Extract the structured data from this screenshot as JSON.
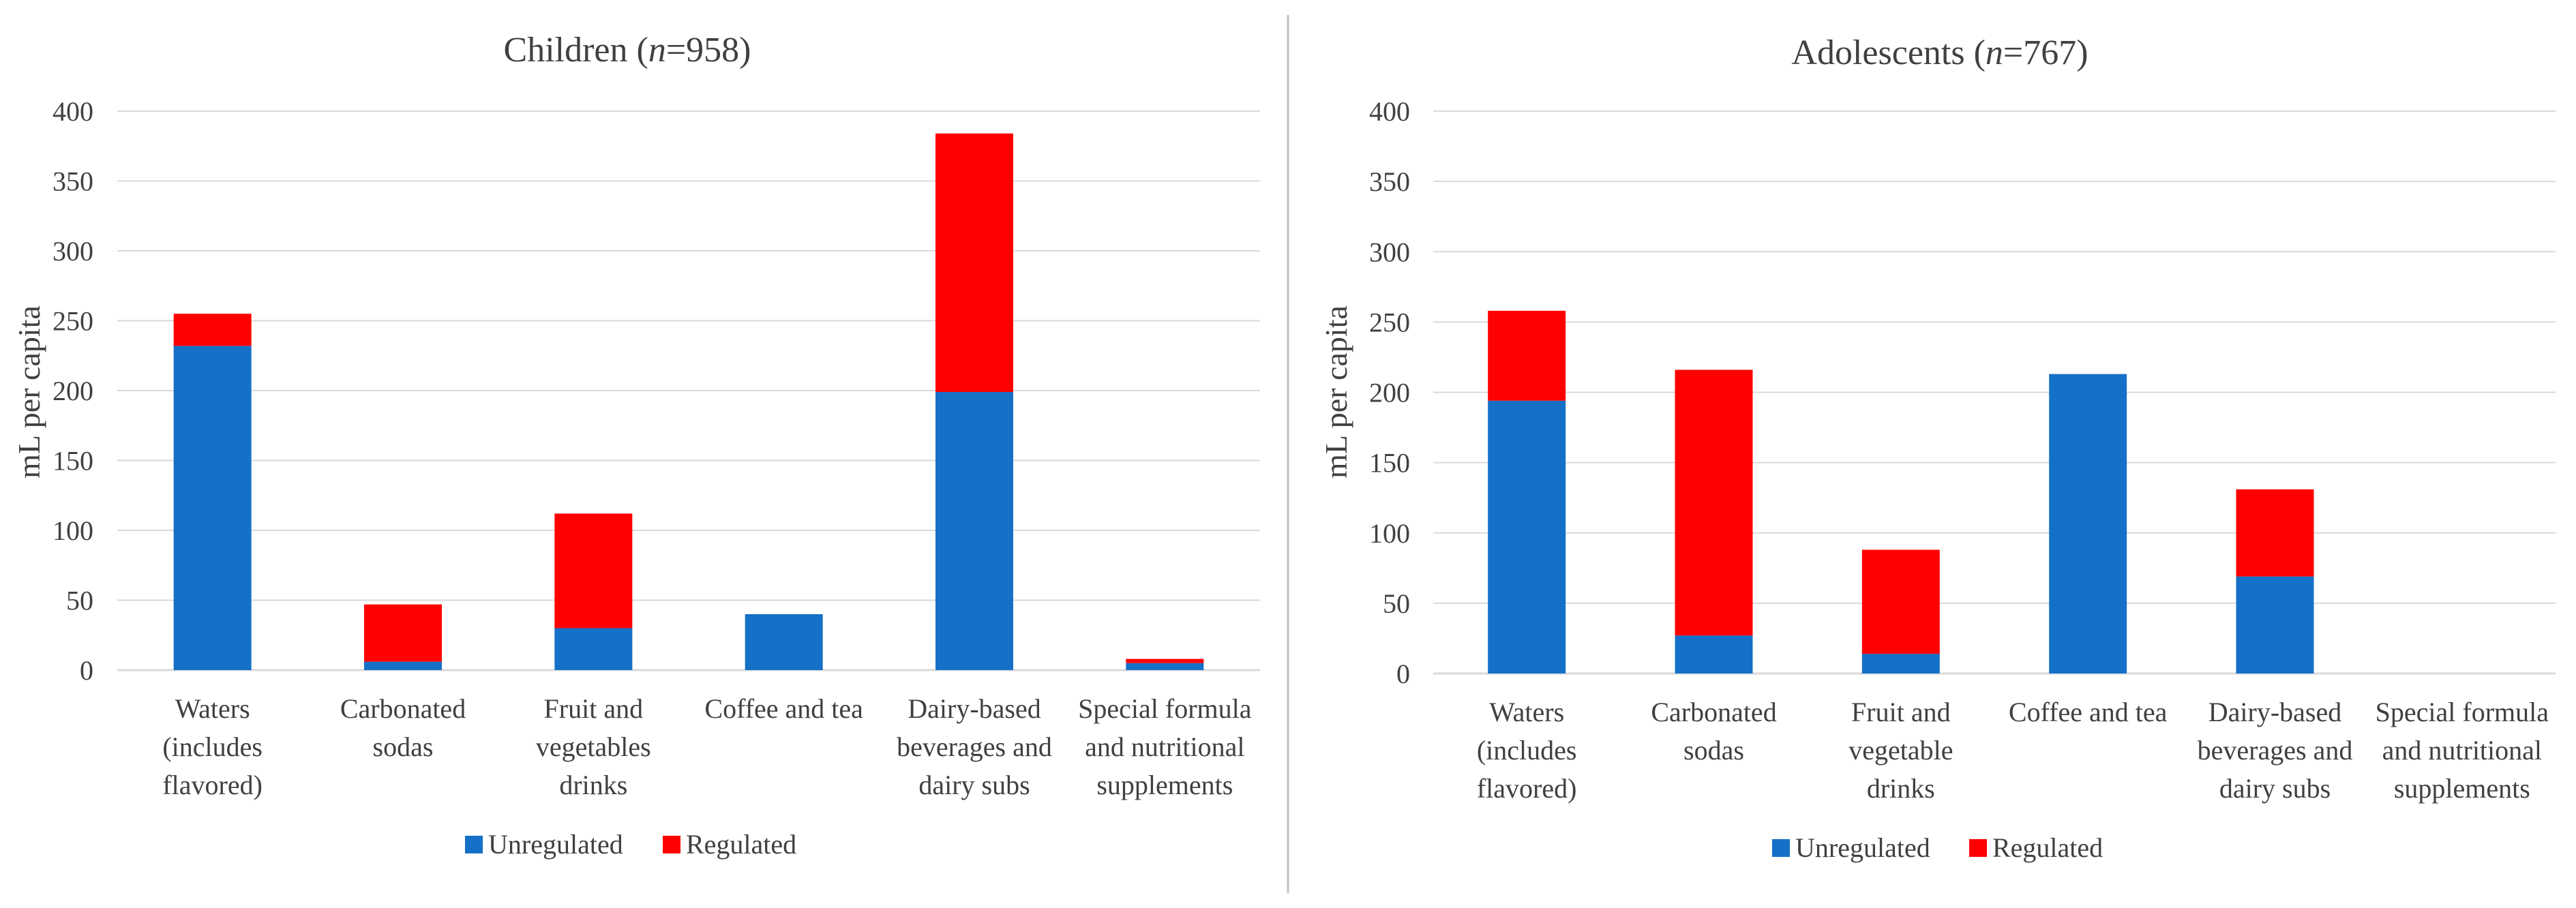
{
  "chart_data": [
    {
      "type": "bar",
      "stacked": true,
      "title": "Children (n=958)",
      "title_parts": {
        "prefix": "Children (",
        "n_symbol": "n",
        "n_value": "=958",
        "suffix": ")"
      },
      "ylabel": "mL per capita",
      "xlabel": "",
      "ylim": [
        0,
        400
      ],
      "yticks": [
        0,
        50,
        100,
        150,
        200,
        250,
        300,
        350,
        400
      ],
      "ytick_labels": [
        "0",
        "50",
        "100",
        "150",
        "200",
        "250",
        "300",
        "350",
        "400"
      ],
      "grid": true,
      "legend_position": "bottom",
      "categories": [
        [
          "Waters",
          "(includes",
          "flavored)"
        ],
        [
          "Carbonated",
          "sodas"
        ],
        [
          "Fruit and",
          "vegetables",
          "drinks"
        ],
        [
          "Coffee and tea"
        ],
        [
          "Dairy-based",
          "beverages and",
          "dairy subs"
        ],
        [
          "Special formula",
          "and nutritional",
          "supplements"
        ]
      ],
      "series": [
        {
          "name": "Unregulated",
          "color": "#1570C8",
          "values": [
            232,
            6,
            30,
            40,
            199,
            5
          ]
        },
        {
          "name": "Regulated",
          "color": "#FF0000",
          "values": [
            23,
            41,
            82,
            0,
            185,
            3
          ]
        }
      ]
    },
    {
      "type": "bar",
      "stacked": true,
      "title": "Adolescents (n=767)",
      "title_parts": {
        "prefix": "Adolescents (",
        "n_symbol": "n",
        "n_value": "=767",
        "suffix": ")"
      },
      "ylabel": "mL per capita",
      "xlabel": "",
      "ylim": [
        0,
        400
      ],
      "yticks": [
        0,
        50,
        100,
        150,
        200,
        250,
        300,
        350,
        400
      ],
      "ytick_labels": [
        "0",
        "50",
        "100",
        "150",
        "200",
        "250",
        "300",
        "350",
        "400"
      ],
      "grid": true,
      "legend_position": "bottom",
      "categories": [
        [
          "Waters",
          "(includes",
          "flavored)"
        ],
        [
          "Carbonated",
          "sodas"
        ],
        [
          "Fruit and",
          "vegetable",
          "drinks"
        ],
        [
          "Coffee and tea"
        ],
        [
          "Dairy-based",
          "beverages and",
          "dairy subs"
        ],
        [
          "Special formula",
          "and nutritional",
          "supplements"
        ]
      ],
      "series": [
        {
          "name": "Unregulated",
          "color": "#1570C8",
          "values": [
            194,
            27,
            14,
            213,
            69,
            0
          ]
        },
        {
          "name": "Regulated",
          "color": "#FF0000",
          "values": [
            64,
            189,
            74,
            0,
            62,
            0
          ]
        }
      ]
    }
  ],
  "colors": {
    "grid": "#d9d9d9",
    "text": "#404040",
    "divider": "#bfbfbf"
  }
}
